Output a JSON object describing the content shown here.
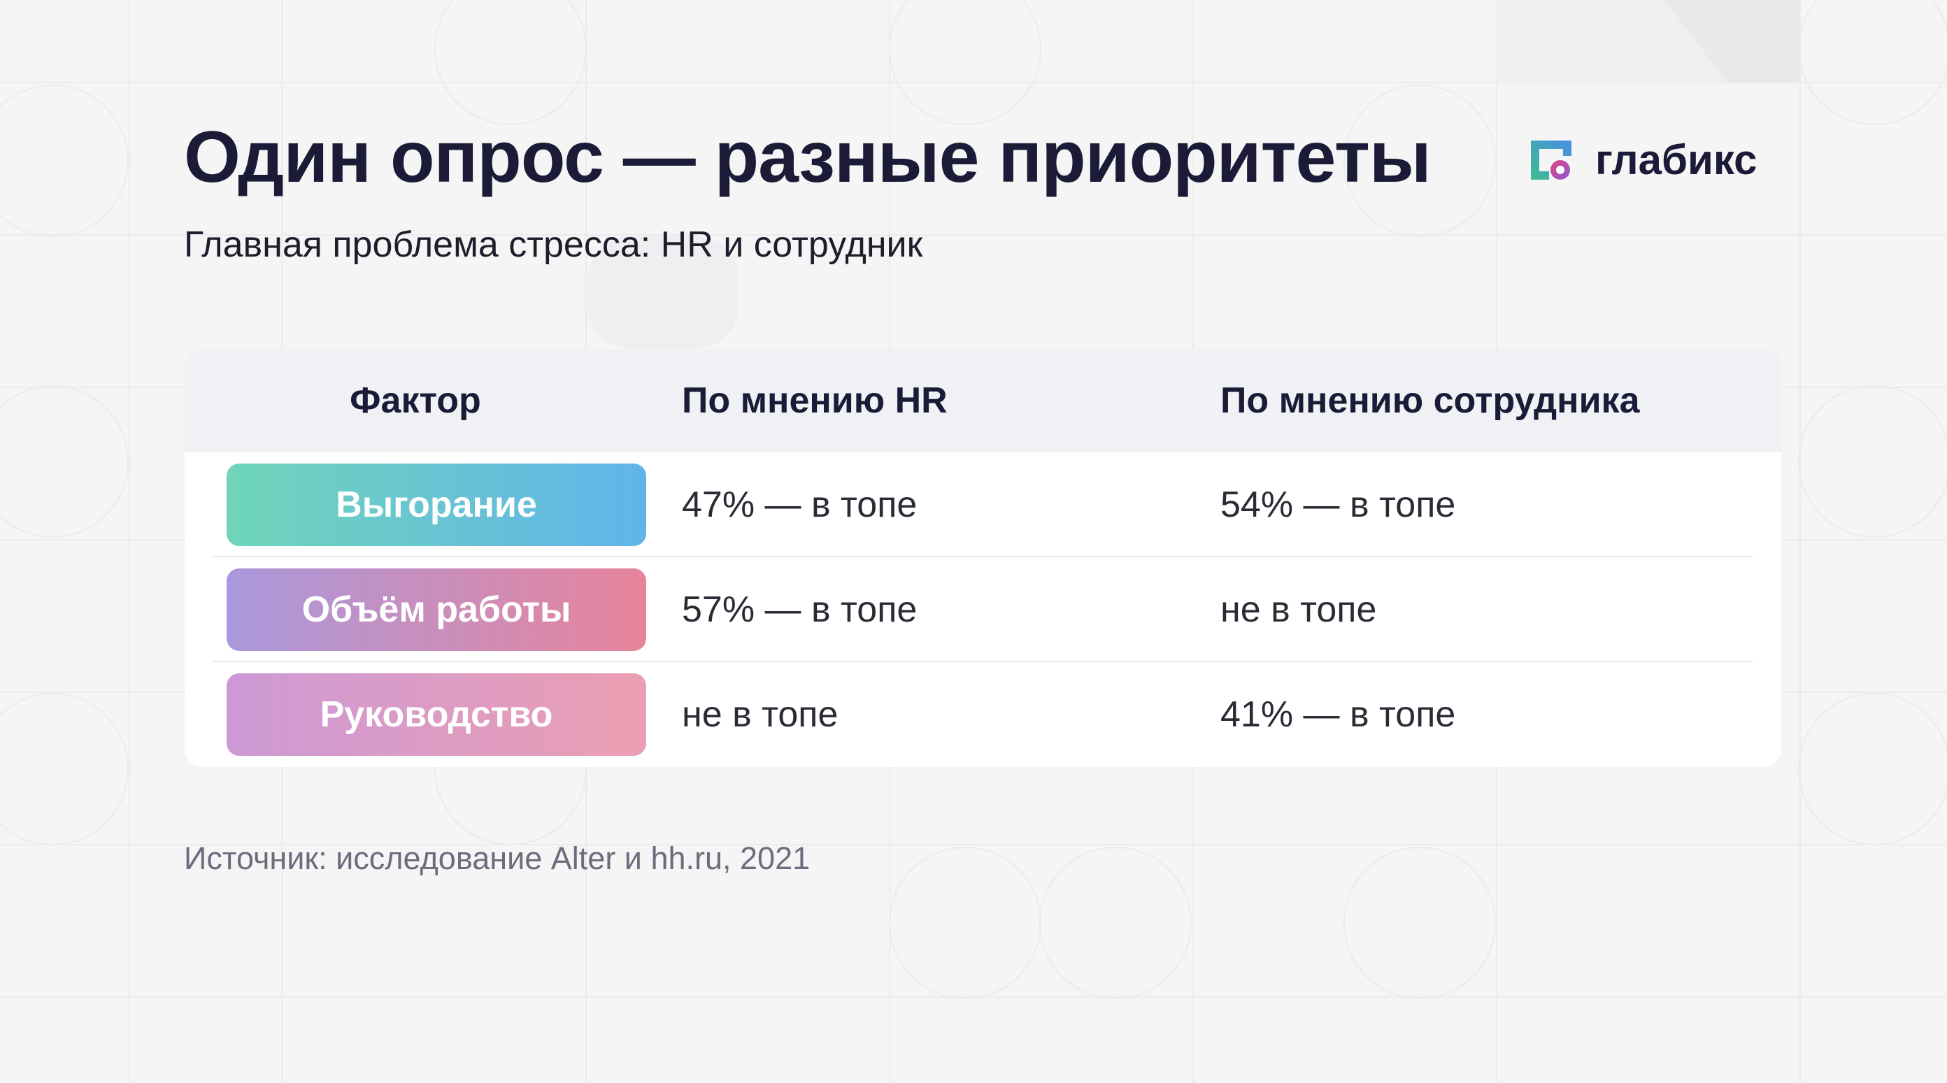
{
  "slide": {
    "title": "Один опрос — разные приоритеты",
    "subtitle": "Главная проблема стресса: HR и сотрудник",
    "source": "Источник: исследование Alter и hh.ru, 2021"
  },
  "logo": {
    "text": "глабикс",
    "icon": "glabix-logo-icon",
    "colors": [
      "#3dbd8f",
      "#4a8de8",
      "#e0457b",
      "#8a5ad8"
    ]
  },
  "table": {
    "headers": {
      "factor": "Фактор",
      "hr": "По мнению HR",
      "employee": "По мнению сотрудника"
    },
    "rows": [
      {
        "factor": "Выгорание",
        "hr": "47% — в топе",
        "employee": "54% — в топе",
        "gradient": [
          "#6fd5b9",
          "#61b4ea"
        ]
      },
      {
        "factor": "Объём работы",
        "hr": "57% — в топе",
        "employee": "не в топе",
        "gradient": [
          "#aa98dc",
          "#e7849b"
        ]
      },
      {
        "factor": "Руководство",
        "hr": "не в топе",
        "employee": "41% — в топе",
        "gradient": [
          "#cc99d6",
          "#eb9eb2"
        ]
      }
    ]
  }
}
